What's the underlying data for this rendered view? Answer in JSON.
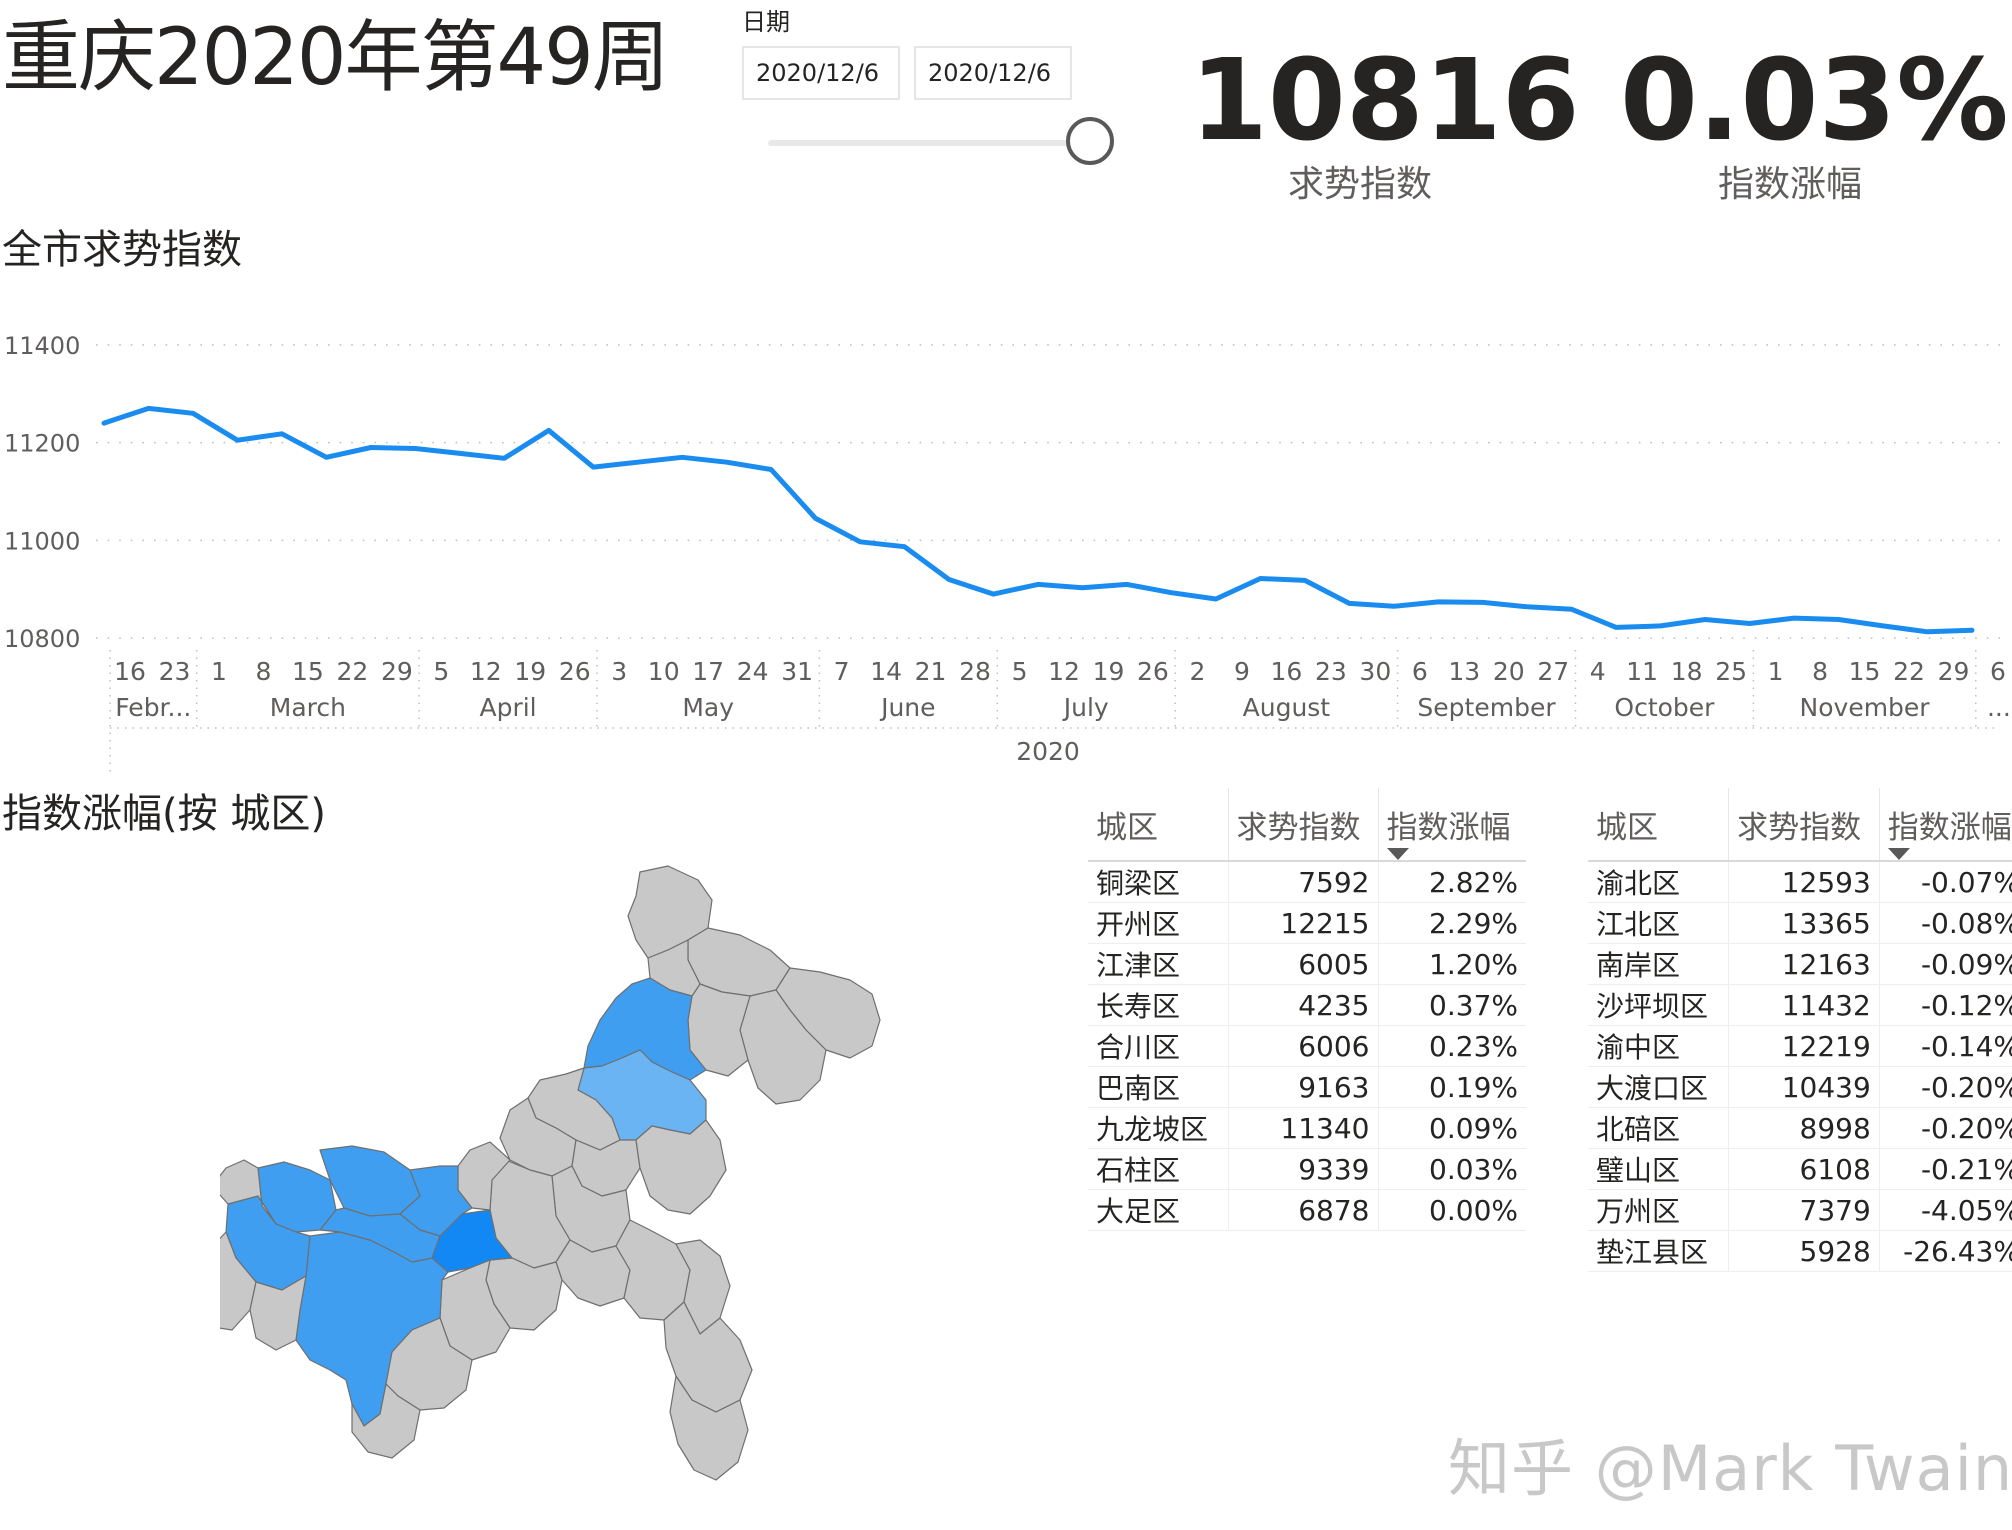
{
  "header": {
    "title": "重庆2020年第49周",
    "date_label": "日期",
    "date_start": "2020/12/6",
    "date_end": "2020/12/6"
  },
  "kpis": [
    {
      "value": "10816",
      "label": "求势指数"
    },
    {
      "value": "0.03%",
      "label": "指数涨幅"
    }
  ],
  "line_section": {
    "title": "全市求势指数"
  },
  "map_section": {
    "title": "指数涨幅(按 城区)"
  },
  "colors": {
    "line": "#1a8cf0",
    "map_gray": "#c8c8c8",
    "map_blue_dark": "#1288f5",
    "map_blue_mid": "#3f9ef0",
    "map_blue_light": "#6ab4f3"
  },
  "chart_data": {
    "type": "line",
    "yticks": [
      10800,
      11000,
      11200,
      11400
    ],
    "ylim": [
      10790,
      11410
    ],
    "grid": true,
    "x": [
      "2020-02-16",
      "2020-02-23",
      "2020-03-01",
      "2020-03-08",
      "2020-03-15",
      "2020-03-22",
      "2020-03-29",
      "2020-04-05",
      "2020-04-12",
      "2020-04-19",
      "2020-04-26",
      "2020-05-03",
      "2020-05-10",
      "2020-05-17",
      "2020-05-24",
      "2020-05-31",
      "2020-06-07",
      "2020-06-14",
      "2020-06-21",
      "2020-06-28",
      "2020-07-05",
      "2020-07-12",
      "2020-07-19",
      "2020-07-26",
      "2020-08-02",
      "2020-08-09",
      "2020-08-16",
      "2020-08-23",
      "2020-08-30",
      "2020-09-06",
      "2020-09-13",
      "2020-09-20",
      "2020-09-27",
      "2020-10-04",
      "2020-10-11",
      "2020-10-18",
      "2020-10-25",
      "2020-11-01",
      "2020-11-08",
      "2020-11-15",
      "2020-11-22",
      "2020-11-29",
      "2020-12-06"
    ],
    "day_ticks": [
      "16",
      "23",
      "1",
      "8",
      "15",
      "22",
      "29",
      "5",
      "12",
      "19",
      "26",
      "3",
      "10",
      "17",
      "24",
      "31",
      "7",
      "14",
      "21",
      "28",
      "5",
      "12",
      "19",
      "26",
      "2",
      "9",
      "16",
      "23",
      "30",
      "6",
      "13",
      "20",
      "27",
      "4",
      "11",
      "18",
      "25",
      "1",
      "8",
      "15",
      "22",
      "29",
      "6"
    ],
    "series": [
      {
        "values": [
          11240,
          11270,
          11260,
          11205,
          11218,
          11170,
          11190,
          11188,
          11178,
          11168,
          11225,
          11150,
          11160,
          11170,
          11160,
          11145,
          11045,
          10997,
          10987,
          10920,
          10890,
          10910,
          10903,
          10910,
          10893,
          10880,
          10922,
          10918,
          10871,
          10865,
          10874,
          10873,
          10864,
          10859,
          10822,
          10825,
          10838,
          10830,
          10841,
          10838,
          10825,
          10813,
          10816
        ]
      }
    ],
    "months": [
      {
        "label": "Febr...",
        "start": 0,
        "end": 1
      },
      {
        "label": "March",
        "start": 2,
        "end": 6
      },
      {
        "label": "April",
        "start": 7,
        "end": 10
      },
      {
        "label": "May",
        "start": 11,
        "end": 15
      },
      {
        "label": "June",
        "start": 16,
        "end": 19
      },
      {
        "label": "July",
        "start": 20,
        "end": 23
      },
      {
        "label": "August",
        "start": 24,
        "end": 28
      },
      {
        "label": "September",
        "start": 29,
        "end": 32
      },
      {
        "label": "October",
        "start": 33,
        "end": 36
      },
      {
        "label": "November",
        "start": 37,
        "end": 41
      },
      {
        "label": "...",
        "start": 42,
        "end": 42
      }
    ],
    "year_label": "2020"
  },
  "tables": {
    "headers": [
      "城区",
      "求势指数",
      "指数涨幅"
    ],
    "left": [
      [
        "铜梁区",
        "7592",
        "2.82%"
      ],
      [
        "开州区",
        "12215",
        "2.29%"
      ],
      [
        "江津区",
        "6005",
        "1.20%"
      ],
      [
        "长寿区",
        "4235",
        "0.37%"
      ],
      [
        "合川区",
        "6006",
        "0.23%"
      ],
      [
        "巴南区",
        "9163",
        "0.19%"
      ],
      [
        "九龙坡区",
        "11340",
        "0.09%"
      ],
      [
        "石柱区",
        "9339",
        "0.03%"
      ],
      [
        "大足区",
        "6878",
        "0.00%"
      ]
    ],
    "right": [
      [
        "渝北区",
        "12593",
        "-0.07%"
      ],
      [
        "江北区",
        "13365",
        "-0.08%"
      ],
      [
        "南岸区",
        "12163",
        "-0.09%"
      ],
      [
        "沙坪坝区",
        "11432",
        "-0.12%"
      ],
      [
        "渝中区",
        "12219",
        "-0.14%"
      ],
      [
        "大渡口区",
        "10439",
        "-0.20%"
      ],
      [
        "北碚区",
        "8998",
        "-0.20%"
      ],
      [
        "璧山区",
        "6108",
        "-0.21%"
      ],
      [
        "万州区",
        "7379",
        "-4.05%"
      ],
      [
        "垫江县区",
        "5928",
        "-26.43%"
      ]
    ]
  },
  "watermark": "知乎 @Mark Twain"
}
